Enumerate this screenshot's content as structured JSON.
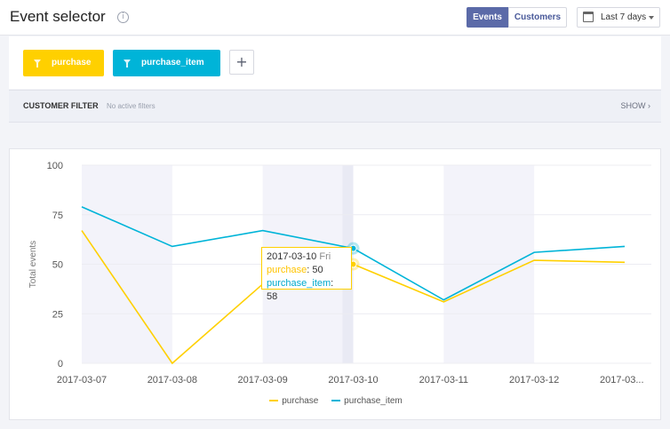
{
  "header": {
    "title": "Event selector",
    "info_icon": "info-icon",
    "tabs": [
      {
        "label": "Events",
        "active": true
      },
      {
        "label": "Customers",
        "active": false
      }
    ],
    "date_range": {
      "label": "Last 7 days",
      "icon": "calendar-icon"
    }
  },
  "events": {
    "chips": [
      {
        "label": "purchase",
        "color": "#ffd000",
        "icon": "funnel-icon"
      },
      {
        "label": "purchase_item",
        "color": "#00b4d8",
        "icon": "funnel-icon"
      }
    ],
    "add_label": "+"
  },
  "customer_filter": {
    "title": "CUSTOMER FILTER",
    "status": "No active filters",
    "show_label": "SHOW ›"
  },
  "tooltip": {
    "date": "2017-03-10",
    "day": "Fri",
    "rows": [
      {
        "name": "purchase",
        "value": "50"
      },
      {
        "name": "purchase_item",
        "value": "58"
      }
    ]
  },
  "chart_data": {
    "type": "line",
    "categories": [
      "2017-03-07",
      "2017-03-08",
      "2017-03-09",
      "2017-03-10",
      "2017-03-11",
      "2017-03-12",
      "2017-03..."
    ],
    "series": [
      {
        "name": "purchase",
        "color": "#ffd000",
        "values": [
          67,
          0,
          40,
          50,
          31,
          52,
          51
        ]
      },
      {
        "name": "purchase_item",
        "color": "#00b4d8",
        "values": [
          79,
          59,
          67,
          58,
          32,
          56,
          59
        ]
      }
    ],
    "yticks": [
      0,
      25,
      50,
      75,
      100
    ],
    "ylim": [
      0,
      100
    ],
    "xlabel": "",
    "ylabel": "Total events",
    "grid": true,
    "highlight_index": 3,
    "legend_position": "bottom"
  }
}
